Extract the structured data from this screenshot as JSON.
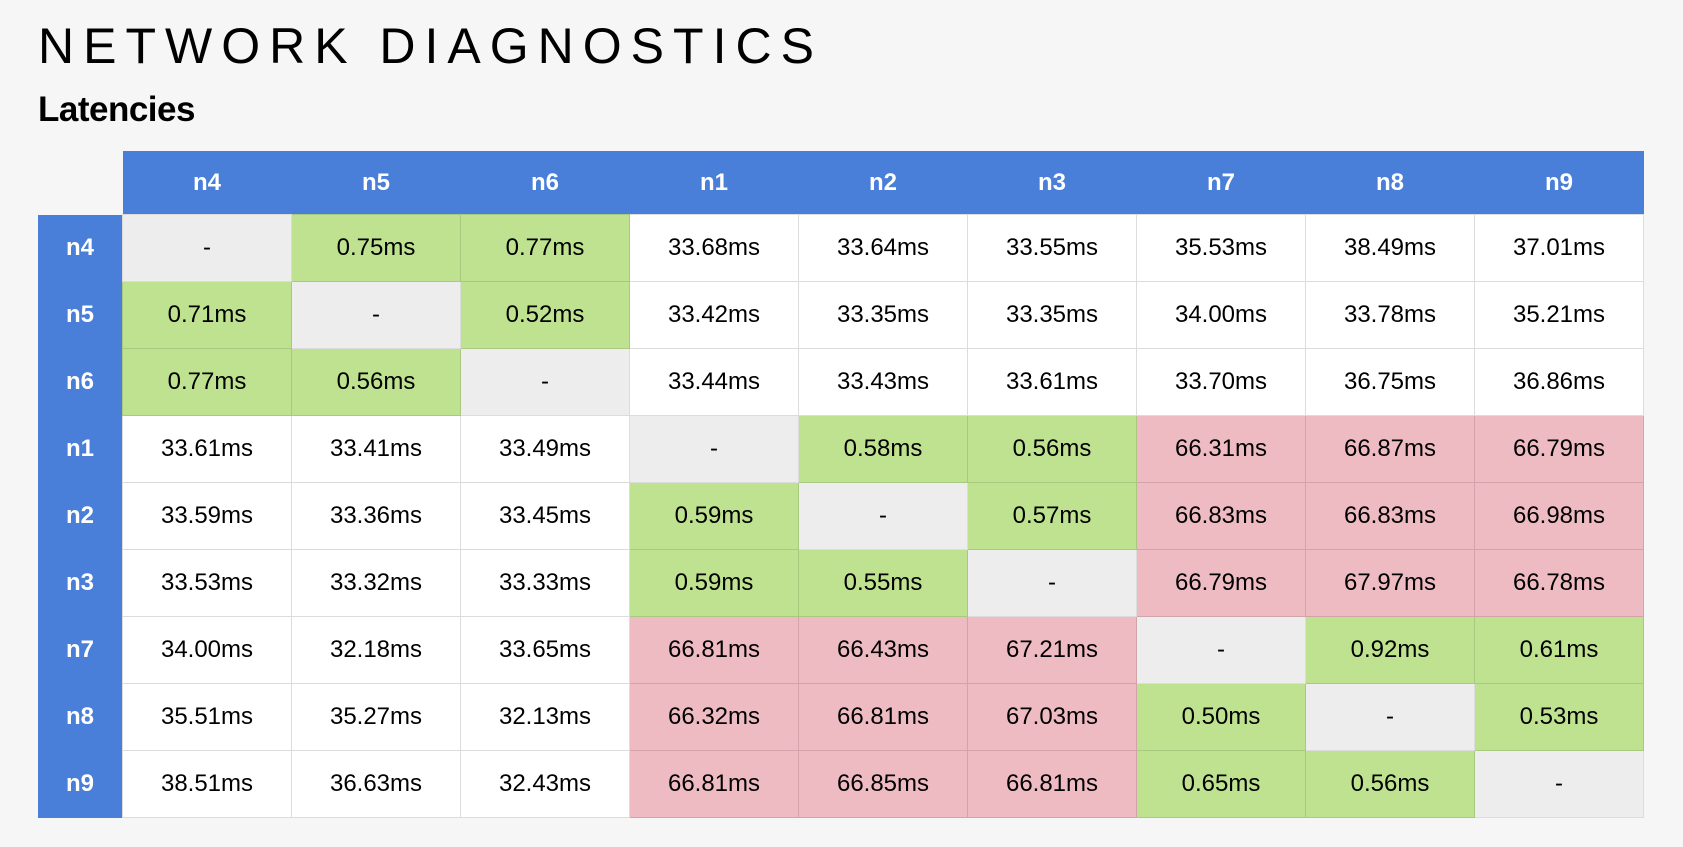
{
  "page": {
    "title": "NETWORK DIAGNOSTICS",
    "subtitle": "Latencies"
  },
  "colors": {
    "header": "#4a7fd9",
    "low": "#bee28f",
    "high": "#eebbc3",
    "self": "#ededed",
    "normal": "#ffffff"
  },
  "columns": [
    "n4",
    "n5",
    "n6",
    "n1",
    "n2",
    "n3",
    "n7",
    "n8",
    "n9"
  ],
  "rows": [
    {
      "label": "n4",
      "cells": [
        [
          "-",
          "self"
        ],
        [
          "0.75ms",
          "low"
        ],
        [
          "0.77ms",
          "low"
        ],
        [
          "33.68ms",
          "normal"
        ],
        [
          "33.64ms",
          "normal"
        ],
        [
          "33.55ms",
          "normal"
        ],
        [
          "35.53ms",
          "normal"
        ],
        [
          "38.49ms",
          "normal"
        ],
        [
          "37.01ms",
          "normal"
        ]
      ]
    },
    {
      "label": "n5",
      "cells": [
        [
          "0.71ms",
          "low"
        ],
        [
          "-",
          "self"
        ],
        [
          "0.52ms",
          "low"
        ],
        [
          "33.42ms",
          "normal"
        ],
        [
          "33.35ms",
          "normal"
        ],
        [
          "33.35ms",
          "normal"
        ],
        [
          "34.00ms",
          "normal"
        ],
        [
          "33.78ms",
          "normal"
        ],
        [
          "35.21ms",
          "normal"
        ]
      ]
    },
    {
      "label": "n6",
      "cells": [
        [
          "0.77ms",
          "low"
        ],
        [
          "0.56ms",
          "low"
        ],
        [
          "-",
          "self"
        ],
        [
          "33.44ms",
          "normal"
        ],
        [
          "33.43ms",
          "normal"
        ],
        [
          "33.61ms",
          "normal"
        ],
        [
          "33.70ms",
          "normal"
        ],
        [
          "36.75ms",
          "normal"
        ],
        [
          "36.86ms",
          "normal"
        ]
      ]
    },
    {
      "label": "n1",
      "cells": [
        [
          "33.61ms",
          "normal"
        ],
        [
          "33.41ms",
          "normal"
        ],
        [
          "33.49ms",
          "normal"
        ],
        [
          "-",
          "self"
        ],
        [
          "0.58ms",
          "low"
        ],
        [
          "0.56ms",
          "low"
        ],
        [
          "66.31ms",
          "high"
        ],
        [
          "66.87ms",
          "high"
        ],
        [
          "66.79ms",
          "high"
        ]
      ]
    },
    {
      "label": "n2",
      "cells": [
        [
          "33.59ms",
          "normal"
        ],
        [
          "33.36ms",
          "normal"
        ],
        [
          "33.45ms",
          "normal"
        ],
        [
          "0.59ms",
          "low"
        ],
        [
          "-",
          "self"
        ],
        [
          "0.57ms",
          "low"
        ],
        [
          "66.83ms",
          "high"
        ],
        [
          "66.83ms",
          "high"
        ],
        [
          "66.98ms",
          "high"
        ]
      ]
    },
    {
      "label": "n3",
      "cells": [
        [
          "33.53ms",
          "normal"
        ],
        [
          "33.32ms",
          "normal"
        ],
        [
          "33.33ms",
          "normal"
        ],
        [
          "0.59ms",
          "low"
        ],
        [
          "0.55ms",
          "low"
        ],
        [
          "-",
          "self"
        ],
        [
          "66.79ms",
          "high"
        ],
        [
          "67.97ms",
          "high"
        ],
        [
          "66.78ms",
          "high"
        ]
      ]
    },
    {
      "label": "n7",
      "cells": [
        [
          "34.00ms",
          "normal"
        ],
        [
          "32.18ms",
          "normal"
        ],
        [
          "33.65ms",
          "normal"
        ],
        [
          "66.81ms",
          "high"
        ],
        [
          "66.43ms",
          "high"
        ],
        [
          "67.21ms",
          "high"
        ],
        [
          "-",
          "self"
        ],
        [
          "0.92ms",
          "low"
        ],
        [
          "0.61ms",
          "low"
        ]
      ]
    },
    {
      "label": "n8",
      "cells": [
        [
          "35.51ms",
          "normal"
        ],
        [
          "35.27ms",
          "normal"
        ],
        [
          "32.13ms",
          "normal"
        ],
        [
          "66.32ms",
          "high"
        ],
        [
          "66.81ms",
          "high"
        ],
        [
          "67.03ms",
          "high"
        ],
        [
          "0.50ms",
          "low"
        ],
        [
          "-",
          "self"
        ],
        [
          "0.53ms",
          "low"
        ]
      ]
    },
    {
      "label": "n9",
      "cells": [
        [
          "38.51ms",
          "normal"
        ],
        [
          "36.63ms",
          "normal"
        ],
        [
          "32.43ms",
          "normal"
        ],
        [
          "66.81ms",
          "high"
        ],
        [
          "66.85ms",
          "high"
        ],
        [
          "66.81ms",
          "high"
        ],
        [
          "0.65ms",
          "low"
        ],
        [
          "0.56ms",
          "low"
        ],
        [
          "-",
          "self"
        ]
      ]
    }
  ]
}
